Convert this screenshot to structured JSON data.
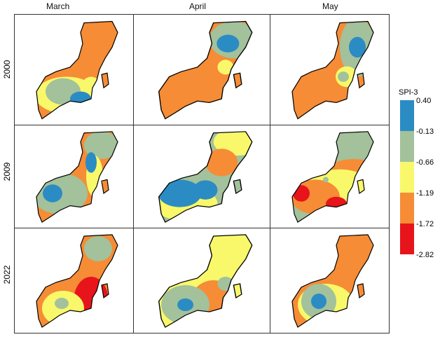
{
  "columns": [
    "March",
    "April",
    "May"
  ],
  "rows": [
    "2000",
    "2009",
    "2022"
  ],
  "legend": {
    "title": "SPI-3",
    "breaks": [
      "0.40",
      "-0.13",
      "-0.66",
      "-1.19",
      "-1.72",
      "-2.82"
    ],
    "classes": [
      {
        "range": "0.40 to -0.13",
        "color": "#2b8cc4"
      },
      {
        "range": "-0.13 to -0.66",
        "color": "#a3c19b"
      },
      {
        "range": "-0.66 to -1.19",
        "color": "#f8f86a"
      },
      {
        "range": "-1.19 to -1.72",
        "color": "#f68c35"
      },
      {
        "range": "-1.72 to -2.82",
        "color": "#e8141b"
      }
    ]
  }
}
